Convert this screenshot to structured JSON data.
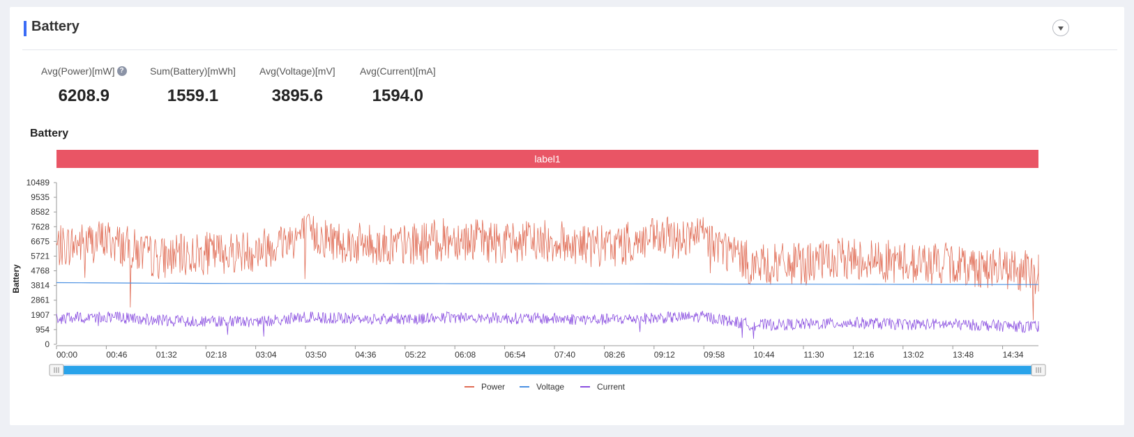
{
  "panel": {
    "title": "Battery"
  },
  "stats": [
    {
      "label": "Avg(Power)[mW]",
      "value": "6208.9",
      "help": true
    },
    {
      "label": "Sum(Battery)[mWh]",
      "value": "1559.1"
    },
    {
      "label": "Avg(Voltage)[mV]",
      "value": "3895.6"
    },
    {
      "label": "Avg(Current)[mA]",
      "value": "1594.0"
    }
  ],
  "chart": {
    "title": "Battery"
  },
  "chart_data": {
    "type": "line",
    "label_band": "label1",
    "ylabel": "Battery",
    "ylim": [
      0,
      10489
    ],
    "yticks": [
      0,
      954,
      1907,
      2861,
      3814,
      4768,
      5721,
      6675,
      7628,
      8582,
      9535,
      10489
    ],
    "xlim_minutes": [
      0,
      918
    ],
    "xticks": [
      "00:00",
      "00:46",
      "01:32",
      "02:18",
      "03:04",
      "03:50",
      "04:36",
      "05:22",
      "06:08",
      "06:54",
      "07:40",
      "08:26",
      "09:12",
      "09:58",
      "10:44",
      "11:30",
      "12:16",
      "13:02",
      "13:48",
      "14:34"
    ],
    "grid": false,
    "legend": "bottom-center",
    "colors": {
      "Power": "#e06c55",
      "Voltage": "#4a90e2",
      "Current": "#8a4fe0"
    },
    "series": [
      {
        "name": "Power",
        "x": [
          "00:00",
          "00:46",
          "01:32",
          "02:18",
          "03:04",
          "03:50",
          "04:36",
          "05:22",
          "06:08",
          "06:54",
          "07:40",
          "08:26",
          "09:12",
          "09:58",
          "10:44",
          "11:30",
          "12:16",
          "13:02",
          "13:48",
          "14:34",
          "15:18"
        ],
        "values": [
          6300,
          6800,
          5600,
          5900,
          6100,
          7200,
          6500,
          6400,
          6900,
          6600,
          6700,
          6300,
          6800,
          7000,
          5100,
          5200,
          5600,
          5300,
          5200,
          4900,
          4500
        ]
      },
      {
        "name": "Voltage",
        "x": [
          "00:00",
          "02:18",
          "05:22",
          "08:26",
          "11:30",
          "14:34",
          "15:18"
        ],
        "values": [
          4000,
          3950,
          3940,
          3920,
          3900,
          3880,
          3880
        ]
      },
      {
        "name": "Current",
        "x": [
          "00:00",
          "00:46",
          "01:32",
          "02:18",
          "03:04",
          "03:50",
          "04:36",
          "05:22",
          "06:08",
          "06:54",
          "07:40",
          "08:26",
          "09:12",
          "09:58",
          "10:44",
          "11:30",
          "12:16",
          "13:02",
          "13:48",
          "14:34",
          "15:18"
        ],
        "values": [
          1650,
          1800,
          1550,
          1500,
          1450,
          1750,
          1650,
          1650,
          1750,
          1700,
          1650,
          1600,
          1700,
          1800,
          1250,
          1300,
          1400,
          1300,
          1300,
          1200,
          1100
        ]
      }
    ]
  },
  "slider": {
    "start_fraction": 0,
    "end_fraction": 1
  },
  "icons": {
    "collapse": "chevron-down-icon",
    "help": "question-icon",
    "handle": "grip-icon"
  }
}
